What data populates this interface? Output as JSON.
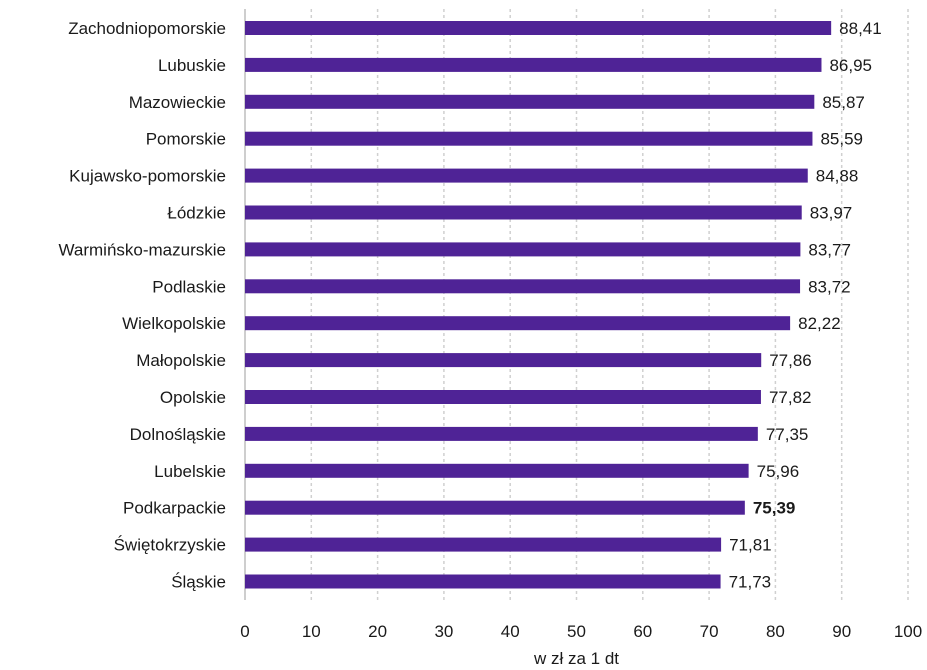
{
  "chart_data": {
    "type": "bar",
    "orientation": "horizontal",
    "categories": [
      "Zachodniopomorskie",
      "Lubuskie",
      "Mazowieckie",
      "Pomorskie",
      "Kujawsko-pomorskie",
      "Łódzkie",
      "Warmińsko-mazurskie",
      "Podlaskie",
      "Wielkopolskie",
      "Małopolskie",
      "Opolskie",
      "Dolnośląskie",
      "Lubelskie",
      "Podkarpackie",
      "Świętokrzyskie",
      "Śląskie"
    ],
    "values": [
      88.41,
      86.95,
      85.87,
      85.59,
      84.88,
      83.97,
      83.77,
      83.72,
      82.22,
      77.86,
      77.82,
      77.35,
      75.96,
      75.39,
      71.81,
      71.73
    ],
    "value_labels": [
      "88,41",
      "86,95",
      "85,87",
      "85,59",
      "84,88",
      "83,97",
      "83,77",
      "83,72",
      "82,22",
      "77,86",
      "77,82",
      "77,35",
      "75,96",
      "75,39",
      "71,81",
      "71,73"
    ],
    "highlighted": "Podkarpackie",
    "xlim": [
      0,
      100
    ],
    "xticks": [
      0,
      10,
      20,
      30,
      40,
      50,
      60,
      70,
      80,
      90,
      100
    ],
    "xlabel": "w zł za 1 dt",
    "ylabel": "",
    "title": "",
    "grid": "vertical",
    "bar_color": "#4f2396"
  }
}
